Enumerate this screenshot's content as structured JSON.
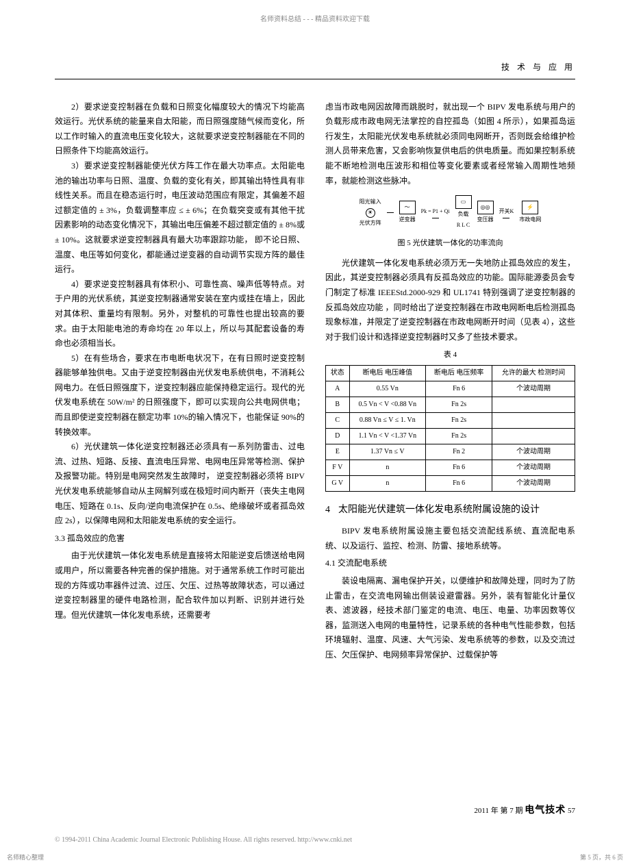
{
  "top_banner": "名师资料总结 - - - 精品资料欢迎下载",
  "header_section": "技 术 与 应 用",
  "left_col": {
    "p2": "2）要求逆变控制器在负载和日照变化幅度较大的情况下均能高效运行。光伏系统的能量来自太阳能，而日照强度随气候而变化，所以工作时输入的直流电压变化较大，这就要求逆变控制器能在不同的日照条件下均能高效运行。",
    "p3": "3）要求逆变控制器能使光伏方阵工作在最大功率点。太阳能电池的输出功率与日照、温度、负载的变化有关，即其输出特性具有非线性关系。而且在稳态运行时，电压波动范围应有限定，其偏差不超过额定值的 ± 3%，负载调整率应 ≤ ± 6%；在负载突变或有其他干扰因素影响的动态变化情况下，其输出电压偏差不超过额定值的 ± 8%或 ± 10%。这就要求逆变控制器具有最大功率跟踪功能， 即不论日照、温度、电压等如何变化，都能通过逆变器的自动调节实现方阵的最佳运行。",
    "p4": "4）要求逆变控制器具有体积小、可靠性高、噪声低等特点。对于户用的光伏系统，其逆变控制器通常安装在室内或挂在墙上，因此对其体积、重量均有限制。另外，对整机的可靠性也提出较高的要求。由于太阳能电池的寿命均在 20 年以上，所以与其配套设备的寿命也必须相当长。",
    "p5": "5）在有些场合，要求在市电断电状况下，在有日照时逆变控制器能够单独供电。又由于逆变控制器由光伏发电系统供电，不消耗公网电力。在低日照强度下，逆变控制器应能保持稳定运行。现代的光伏发电系统在 50W/m² 的日照强度下，即可以实现向公共电网供电；而且即使逆变控制器在额定功率 10%的输入情况下，也能保证 90%的转换效率。",
    "p6": "6）光伏建筑一体化逆变控制器还必须具有一系列防雷击、过电流、过热、短路、反接、直流电压异常、电网电压异常等检测、保护及报警功能。特别是电网突然发生故障时， 逆变控制器必须将 BIPV 光伏发电系统能够自动从主网解列或在极短时间内断开（丧失主电网电压、短路在 0.1s、反向/逆向电流保护在 0.5s、绝缘破坏或者孤岛效应 2s），以保障电网和太阳能发电系统的安全运行。",
    "sec33": "3.3  孤岛效应的危害",
    "p33_1": "由于光伏建筑一体化发电系统是直接将太阳能逆变后馈送给电网或用户，所以需要各种完善的保护措施。对于通常系统工作时可能出现的方阵或功率器件过流、过压、欠压、过热等故障状态，可以通过逆变控制器里的硬件电路检测，配合软件加以判断、识别并进行处理。但光伏建筑一体化发电系统，还需要考"
  },
  "right_col": {
    "p_top": "虑当市政电网因故障而跳脱时，就出现一个 BIPV 发电系统与用户的负载形成市政电网无法掌控的自控孤岛（如图 4 所示），如果孤岛运行发生，太阳能光伏发电系统就必须同电网断开，否则既会给维护检测人员带来危害，又会影响恢复供电后的供电质量。而如果控制系统能不断地检测电压波形和相位等变化要素或者经常输入周期性地频率，就能检测这些脉冲。",
    "schematic_labels": {
      "pv": "光伏方阵",
      "inverter": "逆变器",
      "load": "负载",
      "transformer": "变压器",
      "switch": "开关K",
      "grid": "市政电网",
      "rlc": "R  L  C",
      "sun": "阳光输入",
      "pk": "Pk = P1 + Qi"
    },
    "fig5_caption": "图 5  光伏建筑一体化的功率流向",
    "p_mid": "光伏建筑一体化发电系统必须万无一失地防止孤岛效应的发生， 因此，其逆变控制器必须具有反孤岛效应的功能。国际能源委员会专门制定了标准 IEEEStd.2000-929 和 UL1741 特别强调了逆变控制器的反孤岛效应功能 ，同时给出了逆变控制器在市政电网断电后检测孤岛现象标准，并限定了逆变控制器在市政电网断开时间（见表 4），这些对于我们设计和选择逆变控制器时又多了些技术要求。",
    "table4_caption": "表 4",
    "table4": {
      "headers": [
        "状态",
        "断电后\n电压峰值",
        "断电后\n电压频率",
        "允许的最大\n检测时间"
      ],
      "rows": [
        [
          "A",
          "0.55 Vn",
          "Fn 6",
          "个波动周期"
        ],
        [
          "B",
          "0.5 Vn < V <0.88 Vn",
          "Fn 2s",
          ""
        ],
        [
          "C",
          "0.88 Vn ≤ V ≤ 1. Vn",
          "Fn 2s",
          ""
        ],
        [
          "D",
          "1.1 Vn < V <1.37 Vn",
          "Fn 2s",
          ""
        ],
        [
          "E",
          "1.37 Vn ≤ V",
          "Fn 2",
          "个波动周期"
        ],
        [
          "F V",
          "n",
          "Fn 6",
          "个波动周期"
        ],
        [
          "G V",
          "n",
          "Fn 6",
          "个波动周期"
        ]
      ]
    },
    "sec4_num": "4",
    "sec4_title": "太阳能光伏建筑一体化发电系统附属设施的设计",
    "p4_intro": "BIPV 发电系统附属设施主要包括交流配线系统、直流配电系统、以及运行、监控、检测、防雷、接地系统等。",
    "sec41": "4.1  交流配电系统",
    "p41_1": "装设电隔离、漏电保护开关，以便维护和故障处理，同时为了防止雷击，在交流电网输出侧装设避雷器。另外，装有智能化计量仪表、滤波器，经技术部门鉴定的电流、电压、电量、功率因数等仪器，监测送入电网的电量特性，记录系统的各种电气性能参数，包括环境辐射、温度、风速、大气污染、发电系统等的参数，以及交流过压、欠压保护、电网频率异常保护、过载保护等"
  },
  "footer": {
    "issue": "2011 年 第 7 期",
    "pub": "电气技术",
    "page": "57"
  },
  "copyright": "© 1994-2011 China Academic Journal Electronic Publishing House. All rights reserved.    http://www.cnki.net",
  "corner_left": "名师精心整理",
  "corner_right": "第 5 页，共 6 页"
}
